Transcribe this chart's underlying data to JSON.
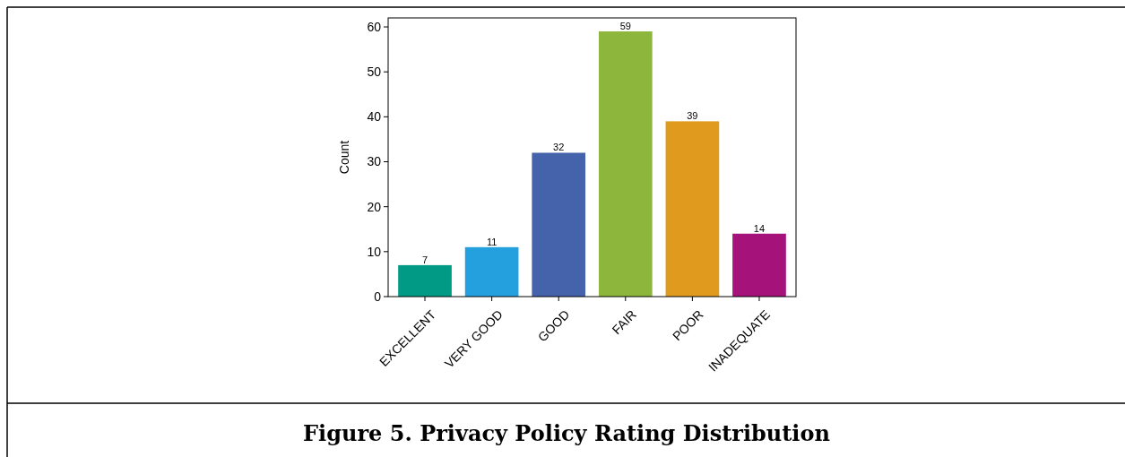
{
  "chart_data": {
    "type": "bar",
    "title": "Figure 5. Privacy Policy Rating Distribution",
    "ylabel": "Count",
    "categories": [
      "EXCELLENT",
      "VERY GOOD",
      "GOOD",
      "FAIR",
      "POOR",
      "INADEQUATE"
    ],
    "values": [
      7,
      11,
      32,
      59,
      39,
      14
    ],
    "colors": [
      "#009a85",
      "#23a0dd",
      "#4563aa",
      "#8db63c",
      "#e09b1e",
      "#a4127a"
    ],
    "ylim": [
      0,
      62
    ],
    "yticks": [
      0,
      10,
      20,
      30,
      40,
      50,
      60
    ],
    "data_labels": true,
    "grid": false
  }
}
